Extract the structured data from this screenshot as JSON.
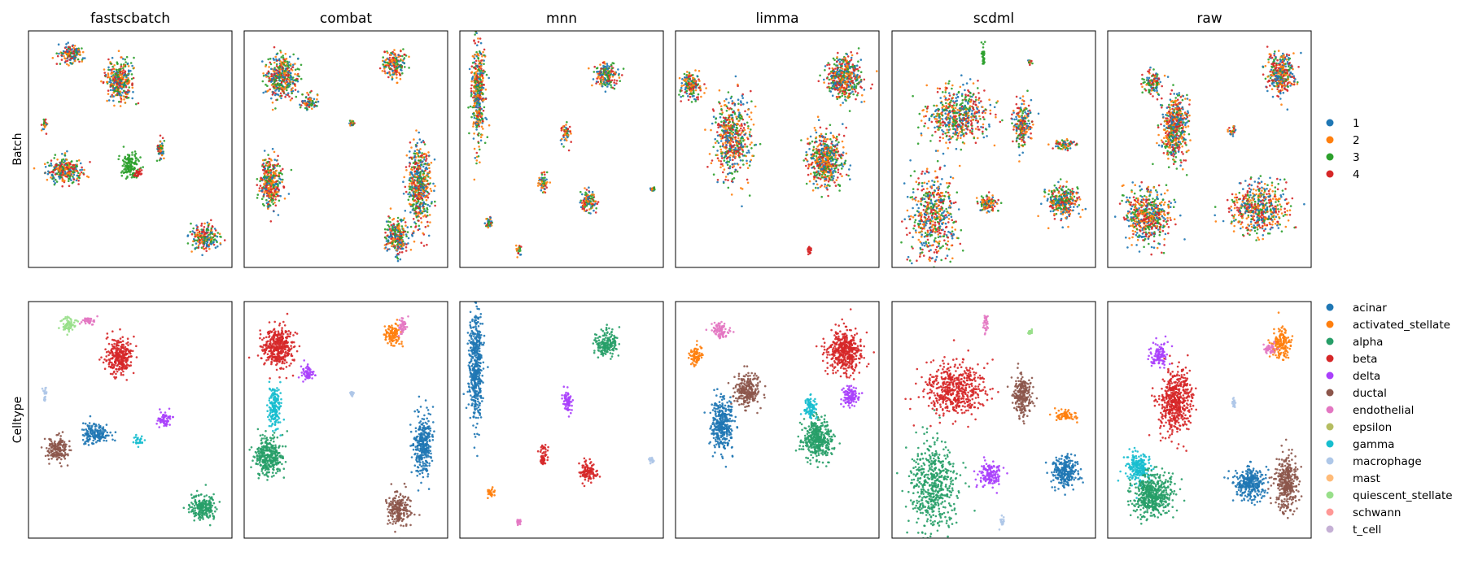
{
  "figure": {
    "column_titles": [
      "fastscbatch",
      "combat",
      "mnn",
      "limma",
      "scdml",
      "raw"
    ],
    "row_labels": [
      "Batch",
      "Celltype"
    ]
  },
  "legends": {
    "batch": [
      {
        "label": "1",
        "color": "#1f77b4"
      },
      {
        "label": "2",
        "color": "#ff7f0e"
      },
      {
        "label": "3",
        "color": "#2ca02c"
      },
      {
        "label": "4",
        "color": "#d62728"
      }
    ],
    "celltype": [
      {
        "label": "acinar",
        "color": "#1f77b4"
      },
      {
        "label": "activated_stellate",
        "color": "#ff7f0e"
      },
      {
        "label": "alpha",
        "color": "#279e68"
      },
      {
        "label": "beta",
        "color": "#d62728"
      },
      {
        "label": "delta",
        "color": "#aa40fc"
      },
      {
        "label": "ductal",
        "color": "#8c564b"
      },
      {
        "label": "endothelial",
        "color": "#e377c2"
      },
      {
        "label": "epsilon",
        "color": "#b5bd61"
      },
      {
        "label": "gamma",
        "color": "#17becf"
      },
      {
        "label": "macrophage",
        "color": "#aec7e8"
      },
      {
        "label": "mast",
        "color": "#ffbb78"
      },
      {
        "label": "quiescent_stellate",
        "color": "#98df8a"
      },
      {
        "label": "schwann",
        "color": "#ff9896"
      },
      {
        "label": "t_cell",
        "color": "#c5b0d5"
      }
    ]
  },
  "chart_data": {
    "type": "scatter",
    "grid": false,
    "axes_ticks": false,
    "legend_placement": "right of each row",
    "panels_note": "UMAP embeddings; clusters approximated as point clouds centred at (x,y) with spread (sx,sy) in 0-1 embedding units",
    "rows": [
      {
        "row": "Batch",
        "color_key": "batch",
        "panels": [
          {
            "method": "fastscbatch",
            "clusters": [
              {
                "x": 0.21,
                "y": 0.9,
                "sx": 0.05,
                "sy": 0.04,
                "color": "mix"
              },
              {
                "x": 0.45,
                "y": 0.79,
                "sx": 0.06,
                "sy": 0.08,
                "color": "mix"
              },
              {
                "x": 0.08,
                "y": 0.6,
                "sx": 0.01,
                "sy": 0.03,
                "color": "mix"
              },
              {
                "x": 0.65,
                "y": 0.5,
                "sx": 0.02,
                "sy": 0.04,
                "color": "mix"
              },
              {
                "x": 0.5,
                "y": 0.43,
                "sx": 0.04,
                "sy": 0.05,
                "color": "3"
              },
              {
                "x": 0.18,
                "y": 0.41,
                "sx": 0.08,
                "sy": 0.05,
                "color": "mix"
              },
              {
                "x": 0.54,
                "y": 0.4,
                "sx": 0.02,
                "sy": 0.02,
                "color": "4"
              },
              {
                "x": 0.87,
                "y": 0.13,
                "sx": 0.06,
                "sy": 0.05,
                "color": "mix"
              }
            ]
          },
          {
            "method": "combat",
            "clusters": [
              {
                "x": 0.18,
                "y": 0.8,
                "sx": 0.07,
                "sy": 0.08,
                "color": "mix"
              },
              {
                "x": 0.32,
                "y": 0.7,
                "sx": 0.04,
                "sy": 0.03,
                "color": "mix"
              },
              {
                "x": 0.74,
                "y": 0.86,
                "sx": 0.05,
                "sy": 0.05,
                "color": "mix"
              },
              {
                "x": 0.53,
                "y": 0.61,
                "sx": 0.01,
                "sy": 0.01,
                "color": "mix"
              },
              {
                "x": 0.13,
                "y": 0.36,
                "sx": 0.05,
                "sy": 0.1,
                "color": "mix"
              },
              {
                "x": 0.86,
                "y": 0.35,
                "sx": 0.05,
                "sy": 0.15,
                "color": "mix"
              },
              {
                "x": 0.75,
                "y": 0.13,
                "sx": 0.05,
                "sy": 0.07,
                "color": "mix"
              }
            ]
          },
          {
            "method": "mnn",
            "clusters": [
              {
                "x": 0.09,
                "y": 0.75,
                "sx": 0.03,
                "sy": 0.2,
                "color": "mix"
              },
              {
                "x": 0.72,
                "y": 0.81,
                "sx": 0.05,
                "sy": 0.05,
                "color": "mix"
              },
              {
                "x": 0.52,
                "y": 0.57,
                "sx": 0.02,
                "sy": 0.04,
                "color": "mix"
              },
              {
                "x": 0.41,
                "y": 0.36,
                "sx": 0.02,
                "sy": 0.04,
                "color": "mix"
              },
              {
                "x": 0.63,
                "y": 0.28,
                "sx": 0.04,
                "sy": 0.04,
                "color": "mix"
              },
              {
                "x": 0.14,
                "y": 0.19,
                "sx": 0.02,
                "sy": 0.02,
                "color": "mix"
              },
              {
                "x": 0.95,
                "y": 0.33,
                "sx": 0.01,
                "sy": 0.01,
                "color": "mix"
              },
              {
                "x": 0.29,
                "y": 0.07,
                "sx": 0.01,
                "sy": 0.02,
                "color": "mix"
              }
            ]
          },
          {
            "method": "limma",
            "clusters": [
              {
                "x": 0.08,
                "y": 0.77,
                "sx": 0.05,
                "sy": 0.05,
                "color": "mix"
              },
              {
                "x": 0.28,
                "y": 0.55,
                "sx": 0.08,
                "sy": 0.15,
                "color": "mix"
              },
              {
                "x": 0.83,
                "y": 0.8,
                "sx": 0.08,
                "sy": 0.08,
                "color": "mix"
              },
              {
                "x": 0.74,
                "y": 0.45,
                "sx": 0.08,
                "sy": 0.1,
                "color": "mix"
              },
              {
                "x": 0.66,
                "y": 0.07,
                "sx": 0.01,
                "sy": 0.02,
                "color": "4"
              }
            ]
          },
          {
            "method": "scdml",
            "clusters": [
              {
                "x": 0.45,
                "y": 0.9,
                "sx": 0.01,
                "sy": 0.04,
                "color": "3"
              },
              {
                "x": 0.68,
                "y": 0.87,
                "sx": 0.01,
                "sy": 0.01,
                "color": "mix"
              },
              {
                "x": 0.32,
                "y": 0.64,
                "sx": 0.14,
                "sy": 0.1,
                "color": "mix"
              },
              {
                "x": 0.64,
                "y": 0.6,
                "sx": 0.04,
                "sy": 0.08,
                "color": "mix"
              },
              {
                "x": 0.85,
                "y": 0.52,
                "sx": 0.05,
                "sy": 0.02,
                "color": "mix"
              },
              {
                "x": 0.2,
                "y": 0.22,
                "sx": 0.1,
                "sy": 0.17,
                "color": "mix"
              },
              {
                "x": 0.47,
                "y": 0.27,
                "sx": 0.05,
                "sy": 0.03,
                "color": "mix"
              },
              {
                "x": 0.84,
                "y": 0.28,
                "sx": 0.07,
                "sy": 0.06,
                "color": "mix"
              }
            ]
          },
          {
            "method": "raw",
            "clusters": [
              {
                "x": 0.85,
                "y": 0.82,
                "sx": 0.06,
                "sy": 0.08,
                "color": "mix"
              },
              {
                "x": 0.22,
                "y": 0.78,
                "sx": 0.04,
                "sy": 0.04,
                "color": "mix"
              },
              {
                "x": 0.33,
                "y": 0.59,
                "sx": 0.06,
                "sy": 0.12,
                "color": "mix"
              },
              {
                "x": 0.61,
                "y": 0.58,
                "sx": 0.02,
                "sy": 0.02,
                "color": "mix"
              },
              {
                "x": 0.19,
                "y": 0.22,
                "sx": 0.1,
                "sy": 0.1,
                "color": "mix"
              },
              {
                "x": 0.74,
                "y": 0.25,
                "sx": 0.12,
                "sy": 0.1,
                "color": "mix"
              }
            ]
          }
        ]
      },
      {
        "row": "Celltype",
        "color_key": "celltype",
        "panels": [
          {
            "method": "fastscbatch",
            "clusters": [
              {
                "x": 0.2,
                "y": 0.9,
                "sx": 0.03,
                "sy": 0.03,
                "color": "quiescent_stellate"
              },
              {
                "x": 0.29,
                "y": 0.92,
                "sx": 0.03,
                "sy": 0.02,
                "color": "endothelial"
              },
              {
                "x": 0.45,
                "y": 0.77,
                "sx": 0.06,
                "sy": 0.07,
                "color": "beta"
              },
              {
                "x": 0.08,
                "y": 0.6,
                "sx": 0.01,
                "sy": 0.03,
                "color": "macrophage"
              },
              {
                "x": 0.67,
                "y": 0.5,
                "sx": 0.03,
                "sy": 0.03,
                "color": "delta"
              },
              {
                "x": 0.14,
                "y": 0.38,
                "sx": 0.05,
                "sy": 0.05,
                "color": "ductal"
              },
              {
                "x": 0.33,
                "y": 0.44,
                "sx": 0.06,
                "sy": 0.04,
                "color": "acinar"
              },
              {
                "x": 0.54,
                "y": 0.41,
                "sx": 0.02,
                "sy": 0.02,
                "color": "gamma"
              },
              {
                "x": 0.86,
                "y": 0.13,
                "sx": 0.06,
                "sy": 0.05,
                "color": "alpha"
              }
            ]
          },
          {
            "method": "combat",
            "clusters": [
              {
                "x": 0.17,
                "y": 0.81,
                "sx": 0.07,
                "sy": 0.08,
                "color": "beta"
              },
              {
                "x": 0.31,
                "y": 0.7,
                "sx": 0.03,
                "sy": 0.03,
                "color": "delta"
              },
              {
                "x": 0.73,
                "y": 0.86,
                "sx": 0.04,
                "sy": 0.04,
                "color": "activated_stellate"
              },
              {
                "x": 0.78,
                "y": 0.9,
                "sx": 0.02,
                "sy": 0.03,
                "color": "endothelial"
              },
              {
                "x": 0.53,
                "y": 0.61,
                "sx": 0.01,
                "sy": 0.01,
                "color": "macrophage"
              },
              {
                "x": 0.15,
                "y": 0.55,
                "sx": 0.03,
                "sy": 0.08,
                "color": "gamma"
              },
              {
                "x": 0.12,
                "y": 0.35,
                "sx": 0.06,
                "sy": 0.08,
                "color": "alpha"
              },
              {
                "x": 0.88,
                "y": 0.4,
                "sx": 0.04,
                "sy": 0.11,
                "color": "acinar"
              },
              {
                "x": 0.76,
                "y": 0.12,
                "sx": 0.05,
                "sy": 0.06,
                "color": "ductal"
              }
            ]
          },
          {
            "method": "mnn",
            "clusters": [
              {
                "x": 0.08,
                "y": 0.72,
                "sx": 0.03,
                "sy": 0.22,
                "color": "acinar"
              },
              {
                "x": 0.72,
                "y": 0.82,
                "sx": 0.05,
                "sy": 0.05,
                "color": "alpha"
              },
              {
                "x": 0.53,
                "y": 0.58,
                "sx": 0.02,
                "sy": 0.05,
                "color": "delta"
              },
              {
                "x": 0.41,
                "y": 0.35,
                "sx": 0.02,
                "sy": 0.04,
                "color": "beta"
              },
              {
                "x": 0.63,
                "y": 0.28,
                "sx": 0.04,
                "sy": 0.04,
                "color": "beta"
              },
              {
                "x": 0.15,
                "y": 0.19,
                "sx": 0.02,
                "sy": 0.02,
                "color": "activated_stellate"
              },
              {
                "x": 0.94,
                "y": 0.33,
                "sx": 0.01,
                "sy": 0.01,
                "color": "macrophage"
              },
              {
                "x": 0.29,
                "y": 0.07,
                "sx": 0.01,
                "sy": 0.02,
                "color": "endothelial"
              }
            ]
          },
          {
            "method": "limma",
            "clusters": [
              {
                "x": 0.1,
                "y": 0.77,
                "sx": 0.03,
                "sy": 0.04,
                "color": "activated_stellate"
              },
              {
                "x": 0.22,
                "y": 0.88,
                "sx": 0.04,
                "sy": 0.03,
                "color": "endothelial"
              },
              {
                "x": 0.35,
                "y": 0.62,
                "sx": 0.06,
                "sy": 0.06,
                "color": "ductal"
              },
              {
                "x": 0.23,
                "y": 0.48,
                "sx": 0.05,
                "sy": 0.1,
                "color": "acinar"
              },
              {
                "x": 0.83,
                "y": 0.79,
                "sx": 0.08,
                "sy": 0.08,
                "color": "beta"
              },
              {
                "x": 0.86,
                "y": 0.6,
                "sx": 0.04,
                "sy": 0.04,
                "color": "delta"
              },
              {
                "x": 0.7,
                "y": 0.42,
                "sx": 0.07,
                "sy": 0.08,
                "color": "alpha"
              },
              {
                "x": 0.66,
                "y": 0.55,
                "sx": 0.03,
                "sy": 0.04,
                "color": "gamma"
              }
            ]
          },
          {
            "method": "scdml",
            "clusters": [
              {
                "x": 0.46,
                "y": 0.9,
                "sx": 0.01,
                "sy": 0.04,
                "color": "endothelial"
              },
              {
                "x": 0.68,
                "y": 0.87,
                "sx": 0.01,
                "sy": 0.01,
                "color": "quiescent_stellate"
              },
              {
                "x": 0.31,
                "y": 0.63,
                "sx": 0.13,
                "sy": 0.1,
                "color": "beta"
              },
              {
                "x": 0.64,
                "y": 0.6,
                "sx": 0.04,
                "sy": 0.08,
                "color": "ductal"
              },
              {
                "x": 0.85,
                "y": 0.52,
                "sx": 0.05,
                "sy": 0.02,
                "color": "activated_stellate"
              },
              {
                "x": 0.2,
                "y": 0.22,
                "sx": 0.1,
                "sy": 0.17,
                "color": "alpha"
              },
              {
                "x": 0.48,
                "y": 0.27,
                "sx": 0.05,
                "sy": 0.04,
                "color": "delta"
              },
              {
                "x": 0.85,
                "y": 0.28,
                "sx": 0.06,
                "sy": 0.06,
                "color": "acinar"
              },
              {
                "x": 0.54,
                "y": 0.07,
                "sx": 0.01,
                "sy": 0.02,
                "color": "macrophage"
              }
            ]
          },
          {
            "method": "raw",
            "clusters": [
              {
                "x": 0.85,
                "y": 0.82,
                "sx": 0.04,
                "sy": 0.06,
                "color": "activated_stellate"
              },
              {
                "x": 0.8,
                "y": 0.8,
                "sx": 0.03,
                "sy": 0.02,
                "color": "endothelial"
              },
              {
                "x": 0.25,
                "y": 0.77,
                "sx": 0.04,
                "sy": 0.04,
                "color": "delta"
              },
              {
                "x": 0.33,
                "y": 0.58,
                "sx": 0.07,
                "sy": 0.12,
                "color": "beta"
              },
              {
                "x": 0.62,
                "y": 0.57,
                "sx": 0.01,
                "sy": 0.02,
                "color": "macrophage"
              },
              {
                "x": 0.15,
                "y": 0.3,
                "sx": 0.05,
                "sy": 0.06,
                "color": "gamma"
              },
              {
                "x": 0.22,
                "y": 0.18,
                "sx": 0.09,
                "sy": 0.08,
                "color": "alpha"
              },
              {
                "x": 0.7,
                "y": 0.23,
                "sx": 0.07,
                "sy": 0.06,
                "color": "acinar"
              },
              {
                "x": 0.88,
                "y": 0.23,
                "sx": 0.05,
                "sy": 0.1,
                "color": "ductal"
              }
            ]
          }
        ]
      }
    ]
  }
}
